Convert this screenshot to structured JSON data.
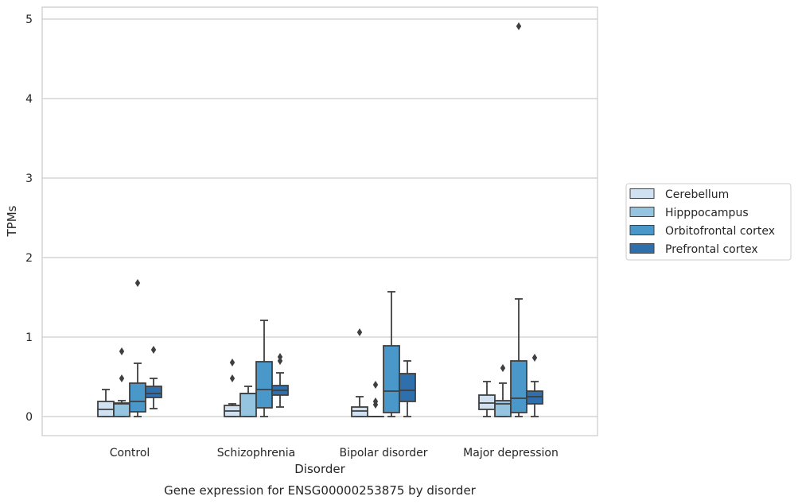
{
  "chart_data": {
    "type": "box",
    "title": "",
    "caption": "Gene expression for ENSG00000253875 by disorder",
    "xlabel": "Disorder",
    "ylabel": "TPMs",
    "ylim": [
      -0.24,
      5.16
    ],
    "yticks": [
      0,
      1,
      2,
      3,
      4,
      5
    ],
    "grid": "horizontal",
    "legend_placement": "right",
    "categories": [
      "Control",
      "Schizophrenia",
      "Bipolar disorder",
      "Major depression"
    ],
    "series": [
      {
        "name": "Cerebellum",
        "color": "#d0e1f2",
        "boxes": [
          {
            "whislo": 0.0,
            "q1": 0.0,
            "med": 0.09,
            "q3": 0.19,
            "whishi": 0.34,
            "fliers": []
          },
          {
            "whislo": 0.0,
            "q1": 0.0,
            "med": 0.07,
            "q3": 0.14,
            "whishi": 0.16,
            "fliers": [
              0.48,
              0.68
            ]
          },
          {
            "whislo": 0.0,
            "q1": 0.0,
            "med": 0.07,
            "q3": 0.12,
            "whishi": 0.25,
            "fliers": [
              1.06
            ]
          },
          {
            "whislo": 0.0,
            "q1": 0.09,
            "med": 0.17,
            "q3": 0.27,
            "whishi": 0.44,
            "fliers": []
          }
        ]
      },
      {
        "name": "Hipppocampus",
        "color": "#94c4df",
        "boxes": [
          {
            "whislo": 0.0,
            "q1": 0.0,
            "med": 0.16,
            "q3": 0.17,
            "whishi": 0.2,
            "fliers": [
              0.48,
              0.82
            ]
          },
          {
            "whislo": 0.0,
            "q1": 0.0,
            "med": 0.29,
            "q3": 0.29,
            "whishi": 0.38,
            "fliers": []
          },
          {
            "whislo": 0.0,
            "q1": 0.0,
            "med": 0.0,
            "q3": 0.0,
            "whishi": 0.0,
            "fliers": [
              0.15,
              0.19,
              0.4
            ]
          },
          {
            "whislo": 0.0,
            "q1": 0.0,
            "med": 0.16,
            "q3": 0.2,
            "whishi": 0.42,
            "fliers": [
              0.61
            ]
          }
        ]
      },
      {
        "name": "Orbitofrontal cortex",
        "color": "#4a98c9",
        "boxes": [
          {
            "whislo": 0.0,
            "q1": 0.06,
            "med": 0.19,
            "q3": 0.42,
            "whishi": 0.67,
            "fliers": [
              1.68
            ]
          },
          {
            "whislo": 0.0,
            "q1": 0.11,
            "med": 0.34,
            "q3": 0.69,
            "whishi": 1.21,
            "fliers": []
          },
          {
            "whislo": 0.0,
            "q1": 0.05,
            "med": 0.32,
            "q3": 0.89,
            "whishi": 1.57,
            "fliers": []
          },
          {
            "whislo": 0.0,
            "q1": 0.05,
            "med": 0.23,
            "q3": 0.7,
            "whishi": 1.48,
            "fliers": [
              4.91
            ]
          }
        ]
      },
      {
        "name": "Prefrontal cortex",
        "color": "#2e6fac",
        "boxes": [
          {
            "whislo": 0.1,
            "q1": 0.24,
            "med": 0.29,
            "q3": 0.38,
            "whishi": 0.48,
            "fliers": [
              0.84
            ]
          },
          {
            "whislo": 0.12,
            "q1": 0.27,
            "med": 0.33,
            "q3": 0.39,
            "whishi": 0.55,
            "fliers": [
              0.7,
              0.75
            ]
          },
          {
            "whislo": 0.0,
            "q1": 0.19,
            "med": 0.33,
            "q3": 0.54,
            "whishi": 0.7,
            "fliers": []
          },
          {
            "whislo": 0.0,
            "q1": 0.16,
            "med": 0.25,
            "q3": 0.32,
            "whishi": 0.44,
            "fliers": [
              0.74
            ]
          }
        ]
      }
    ]
  }
}
